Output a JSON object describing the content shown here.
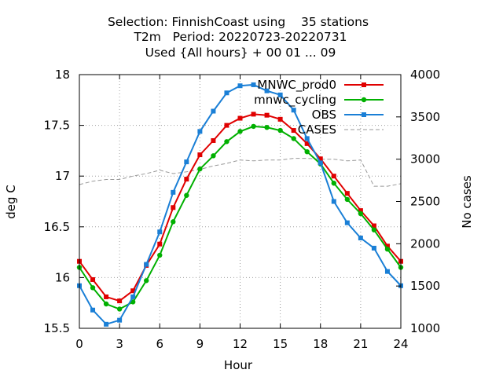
{
  "chart_data": {
    "type": "line",
    "title": [
      "Selection: FinnishCoast using    35 stations",
      "T2m   Period: 20220723-20220731",
      "Used {All hours} + 00 01 ... 09"
    ],
    "xlabel": "Hour",
    "ylabel": "deg C",
    "y2label": "No cases",
    "xlim": [
      0,
      24
    ],
    "ylim": [
      15.5,
      18
    ],
    "y2lim": [
      1000,
      4000
    ],
    "xticks": [
      0,
      3,
      6,
      9,
      12,
      15,
      18,
      21,
      24
    ],
    "yticks": [
      "15.5",
      "16",
      "16.5",
      "17",
      "17.5",
      "18"
    ],
    "y2ticks": [
      "1000",
      "1500",
      "2000",
      "2500",
      "3000",
      "3500",
      "4000"
    ],
    "grid": true,
    "legend_position": "top-right",
    "x": [
      0,
      1,
      2,
      3,
      4,
      5,
      6,
      7,
      8,
      9,
      10,
      11,
      12,
      13,
      14,
      15,
      16,
      17,
      18,
      19,
      20,
      21,
      22,
      23,
      24
    ],
    "series": [
      {
        "name": "MNWC_prod0",
        "color": "#e00000",
        "marker": "square",
        "axis": "y",
        "values": [
          16.16,
          15.98,
          15.81,
          15.77,
          15.87,
          16.12,
          16.33,
          16.69,
          16.97,
          17.21,
          17.35,
          17.5,
          17.57,
          17.61,
          17.6,
          17.56,
          17.45,
          17.32,
          17.17,
          17.0,
          16.83,
          16.66,
          16.51,
          16.31,
          16.16
        ]
      },
      {
        "name": "mnwc_cycling",
        "color": "#00b000",
        "marker": "circle",
        "axis": "y",
        "values": [
          16.1,
          15.9,
          15.74,
          15.69,
          15.76,
          15.97,
          16.22,
          16.55,
          16.81,
          17.07,
          17.2,
          17.34,
          17.44,
          17.49,
          17.48,
          17.45,
          17.37,
          17.24,
          17.12,
          16.93,
          16.77,
          16.63,
          16.47,
          16.28,
          16.1
        ]
      },
      {
        "name": "OBS",
        "color": "#1a7fd6",
        "marker": "square",
        "axis": "y",
        "values": [
          15.92,
          15.68,
          15.54,
          15.58,
          15.81,
          16.13,
          16.45,
          16.84,
          17.14,
          17.44,
          17.64,
          17.82,
          17.89,
          17.9,
          17.84,
          17.8,
          17.65,
          17.37,
          17.13,
          16.75,
          16.54,
          16.39,
          16.29,
          16.06,
          15.92
        ]
      },
      {
        "name": "CASES",
        "color": "#999999",
        "marker": "none",
        "dashed": true,
        "axis": "y2",
        "values": [
          2700,
          2740,
          2760,
          2760,
          2800,
          2830,
          2870,
          2830,
          2850,
          2880,
          2920,
          2950,
          2990,
          2980,
          2990,
          2990,
          3010,
          3010,
          3000,
          3000,
          2980,
          2990,
          2680,
          2680,
          2710
        ]
      }
    ]
  }
}
